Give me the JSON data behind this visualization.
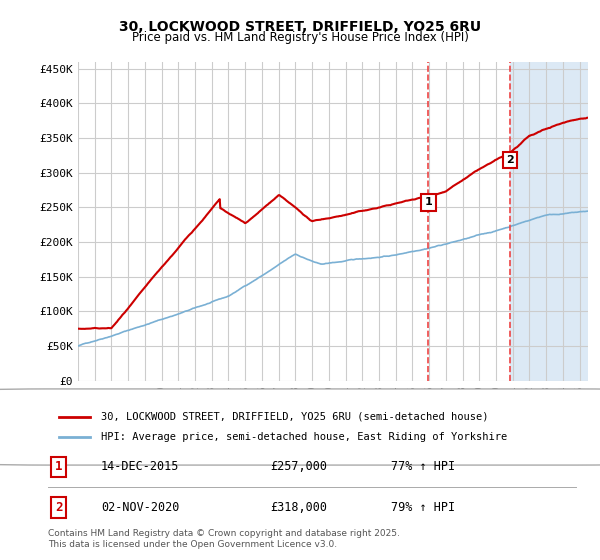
{
  "title_line1": "30, LOCKWOOD STREET, DRIFFIELD, YO25 6RU",
  "title_line2": "Price paid vs. HM Land Registry's House Price Index (HPI)",
  "ylabel_ticks": [
    "£0",
    "£50K",
    "£100K",
    "£150K",
    "£200K",
    "£250K",
    "£300K",
    "£350K",
    "£400K",
    "£450K"
  ],
  "ytick_values": [
    0,
    50000,
    100000,
    150000,
    200000,
    250000,
    300000,
    350000,
    400000,
    450000
  ],
  "ylim": [
    0,
    460000
  ],
  "xlim_start": 1995.0,
  "xlim_end": 2025.5,
  "background_color": "#ffffff",
  "plot_bg_color": "#ffffff",
  "grid_color": "#cccccc",
  "shade_color": "#dce9f5",
  "red_line_color": "#cc0000",
  "blue_line_color": "#7ab0d4",
  "dashed_line_color": "#ee4444",
  "marker1_x": 2015.95,
  "marker2_x": 2020.84,
  "marker1_y": 257000,
  "marker2_y": 318000,
  "legend_label1": "30, LOCKWOOD STREET, DRIFFIELD, YO25 6RU (semi-detached house)",
  "legend_label2": "HPI: Average price, semi-detached house, East Riding of Yorkshire",
  "sale1_label": "1",
  "sale2_label": "2",
  "sale1_date": "14-DEC-2015",
  "sale1_price": "£257,000",
  "sale1_hpi": "77% ↑ HPI",
  "sale2_date": "02-NOV-2020",
  "sale2_price": "£318,000",
  "sale2_hpi": "79% ↑ HPI",
  "footer": "Contains HM Land Registry data © Crown copyright and database right 2025.\nThis data is licensed under the Open Government Licence v3.0."
}
